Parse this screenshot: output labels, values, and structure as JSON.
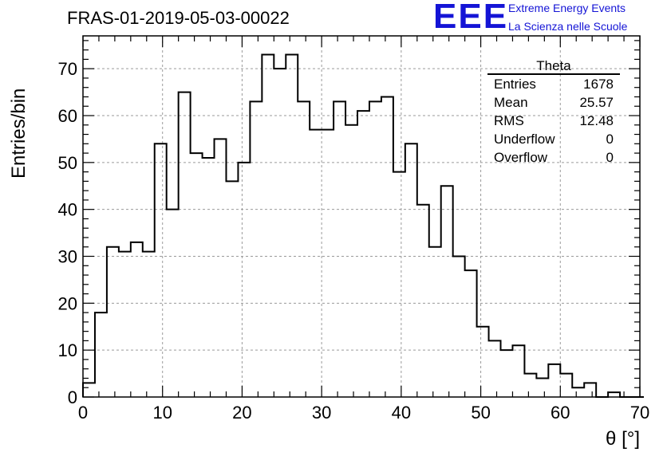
{
  "title": "FRAS-01-2019-05-03-00022",
  "logo": {
    "mark": "EEE",
    "line1": "Extreme Energy Events",
    "line2": "La Scienza nelle Scuole",
    "color": "#1414d6"
  },
  "stats": {
    "name": "Theta",
    "rows": [
      {
        "label": "Entries",
        "value": "1678"
      },
      {
        "label": "Mean",
        "value": "25.57"
      },
      {
        "label": "RMS",
        "value": "12.48"
      },
      {
        "label": "Underflow",
        "value": "0"
      },
      {
        "label": "Overflow",
        "value": "0"
      }
    ]
  },
  "chart_data": {
    "type": "bar",
    "style": "step-histogram",
    "xlabel": "θ [°]",
    "ylabel": "Entries/bin",
    "xlim": [
      0,
      70
    ],
    "ylim": [
      0,
      77
    ],
    "x_ticks": [
      0,
      10,
      20,
      30,
      40,
      50,
      60,
      70
    ],
    "y_ticks": [
      0,
      10,
      20,
      30,
      40,
      50,
      60,
      70
    ],
    "grid": true,
    "bin_width": 1.5,
    "values": [
      3,
      18,
      32,
      31,
      33,
      31,
      54,
      40,
      65,
      52,
      51,
      55,
      46,
      50,
      63,
      73,
      70,
      73,
      63,
      57,
      57,
      63,
      58,
      61,
      63,
      64,
      48,
      54,
      41,
      32,
      45,
      30,
      27,
      15,
      12,
      10,
      11,
      5,
      4,
      7,
      5,
      2,
      3,
      0,
      1,
      0,
      0
    ]
  }
}
